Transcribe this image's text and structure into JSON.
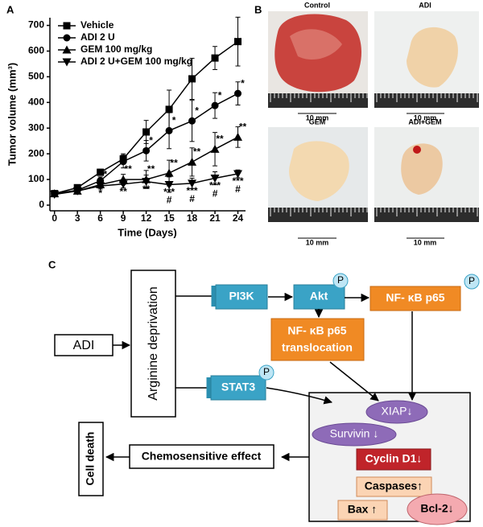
{
  "panel_labels": [
    "A",
    "B",
    "C"
  ],
  "chart_data": {
    "type": "line",
    "xlabel": "Time (Days)",
    "ylabel": "Tumor volume (mm³)",
    "x": [
      0,
      3,
      6,
      9,
      12,
      15,
      18,
      21,
      24
    ],
    "xlim": [
      -0.6,
      25
    ],
    "xticks": [
      0,
      3,
      6,
      9,
      12,
      15,
      18,
      21,
      24
    ],
    "ylim": [
      -22,
      730
    ],
    "yticks": [
      0,
      100,
      200,
      300,
      400,
      500,
      600,
      700
    ],
    "legend": "upper left",
    "color": "#000000",
    "series": [
      {
        "name": "Vehicle",
        "marker": "square",
        "values": [
          45,
          68,
          128,
          180,
          285,
          373,
          492,
          573,
          637
        ],
        "errors": [
          5,
          8,
          12,
          20,
          45,
          75,
          80,
          45,
          95
        ]
      },
      {
        "name": "ADI 2 U",
        "marker": "circle",
        "values": [
          45,
          58,
          95,
          170,
          212,
          290,
          328,
          388,
          435
        ],
        "errors": [
          5,
          8,
          15,
          25,
          40,
          70,
          80,
          50,
          45
        ],
        "significance": [
          null,
          null,
          null,
          null,
          "*",
          "*",
          "*",
          "*",
          "*"
        ]
      },
      {
        "name": "GEM 100 mg/kg",
        "marker": "triangle-up",
        "values": [
          45,
          55,
          80,
          100,
          100,
          125,
          168,
          218,
          265
        ],
        "errors": [
          5,
          8,
          12,
          20,
          35,
          50,
          55,
          65,
          40
        ],
        "significance": [
          null,
          null,
          "*",
          "**",
          "**",
          "**",
          "**",
          "**",
          "**"
        ]
      },
      {
        "name": "ADI 2 U+GEM 100 mg/kg",
        "marker": "triangle-down",
        "values": [
          42,
          55,
          75,
          82,
          92,
          80,
          85,
          105,
          122
        ],
        "errors": [
          5,
          8,
          12,
          15,
          25,
          30,
          20,
          25,
          15
        ],
        "significance": [
          null,
          null,
          [
            "*"
          ],
          [
            "**"
          ],
          [
            "**"
          ],
          [
            "***",
            "#"
          ],
          [
            "***",
            "#"
          ],
          [
            "***",
            "#"
          ],
          [
            "***",
            "#"
          ]
        ]
      }
    ]
  },
  "photos": [
    {
      "label": "Control",
      "scale": "10 mm"
    },
    {
      "label": "ADI",
      "scale": "10 mm"
    },
    {
      "label": "GEM",
      "scale": "10 mm"
    },
    {
      "label": "ADI+GEM",
      "scale": "10 mm"
    }
  ],
  "diagram": {
    "adi": "ADI",
    "arginine": "Arginine deprivation",
    "pi3k": "PI3K",
    "akt": "Akt",
    "nfkb": "NF- κB p65",
    "translocation": [
      "NF- κB p65",
      "translocation"
    ],
    "stat3": "STAT3",
    "phospho": "P",
    "xiap": "XIAP↓",
    "survivin": "Survivin ↓",
    "cyclin": "Cyclin D1↓",
    "caspases": "Caspases↑",
    "bax": "Bax ↑",
    "bcl2": "Bcl-2↓",
    "chemo": "Chemosensitive effect",
    "death": "Cell death"
  }
}
